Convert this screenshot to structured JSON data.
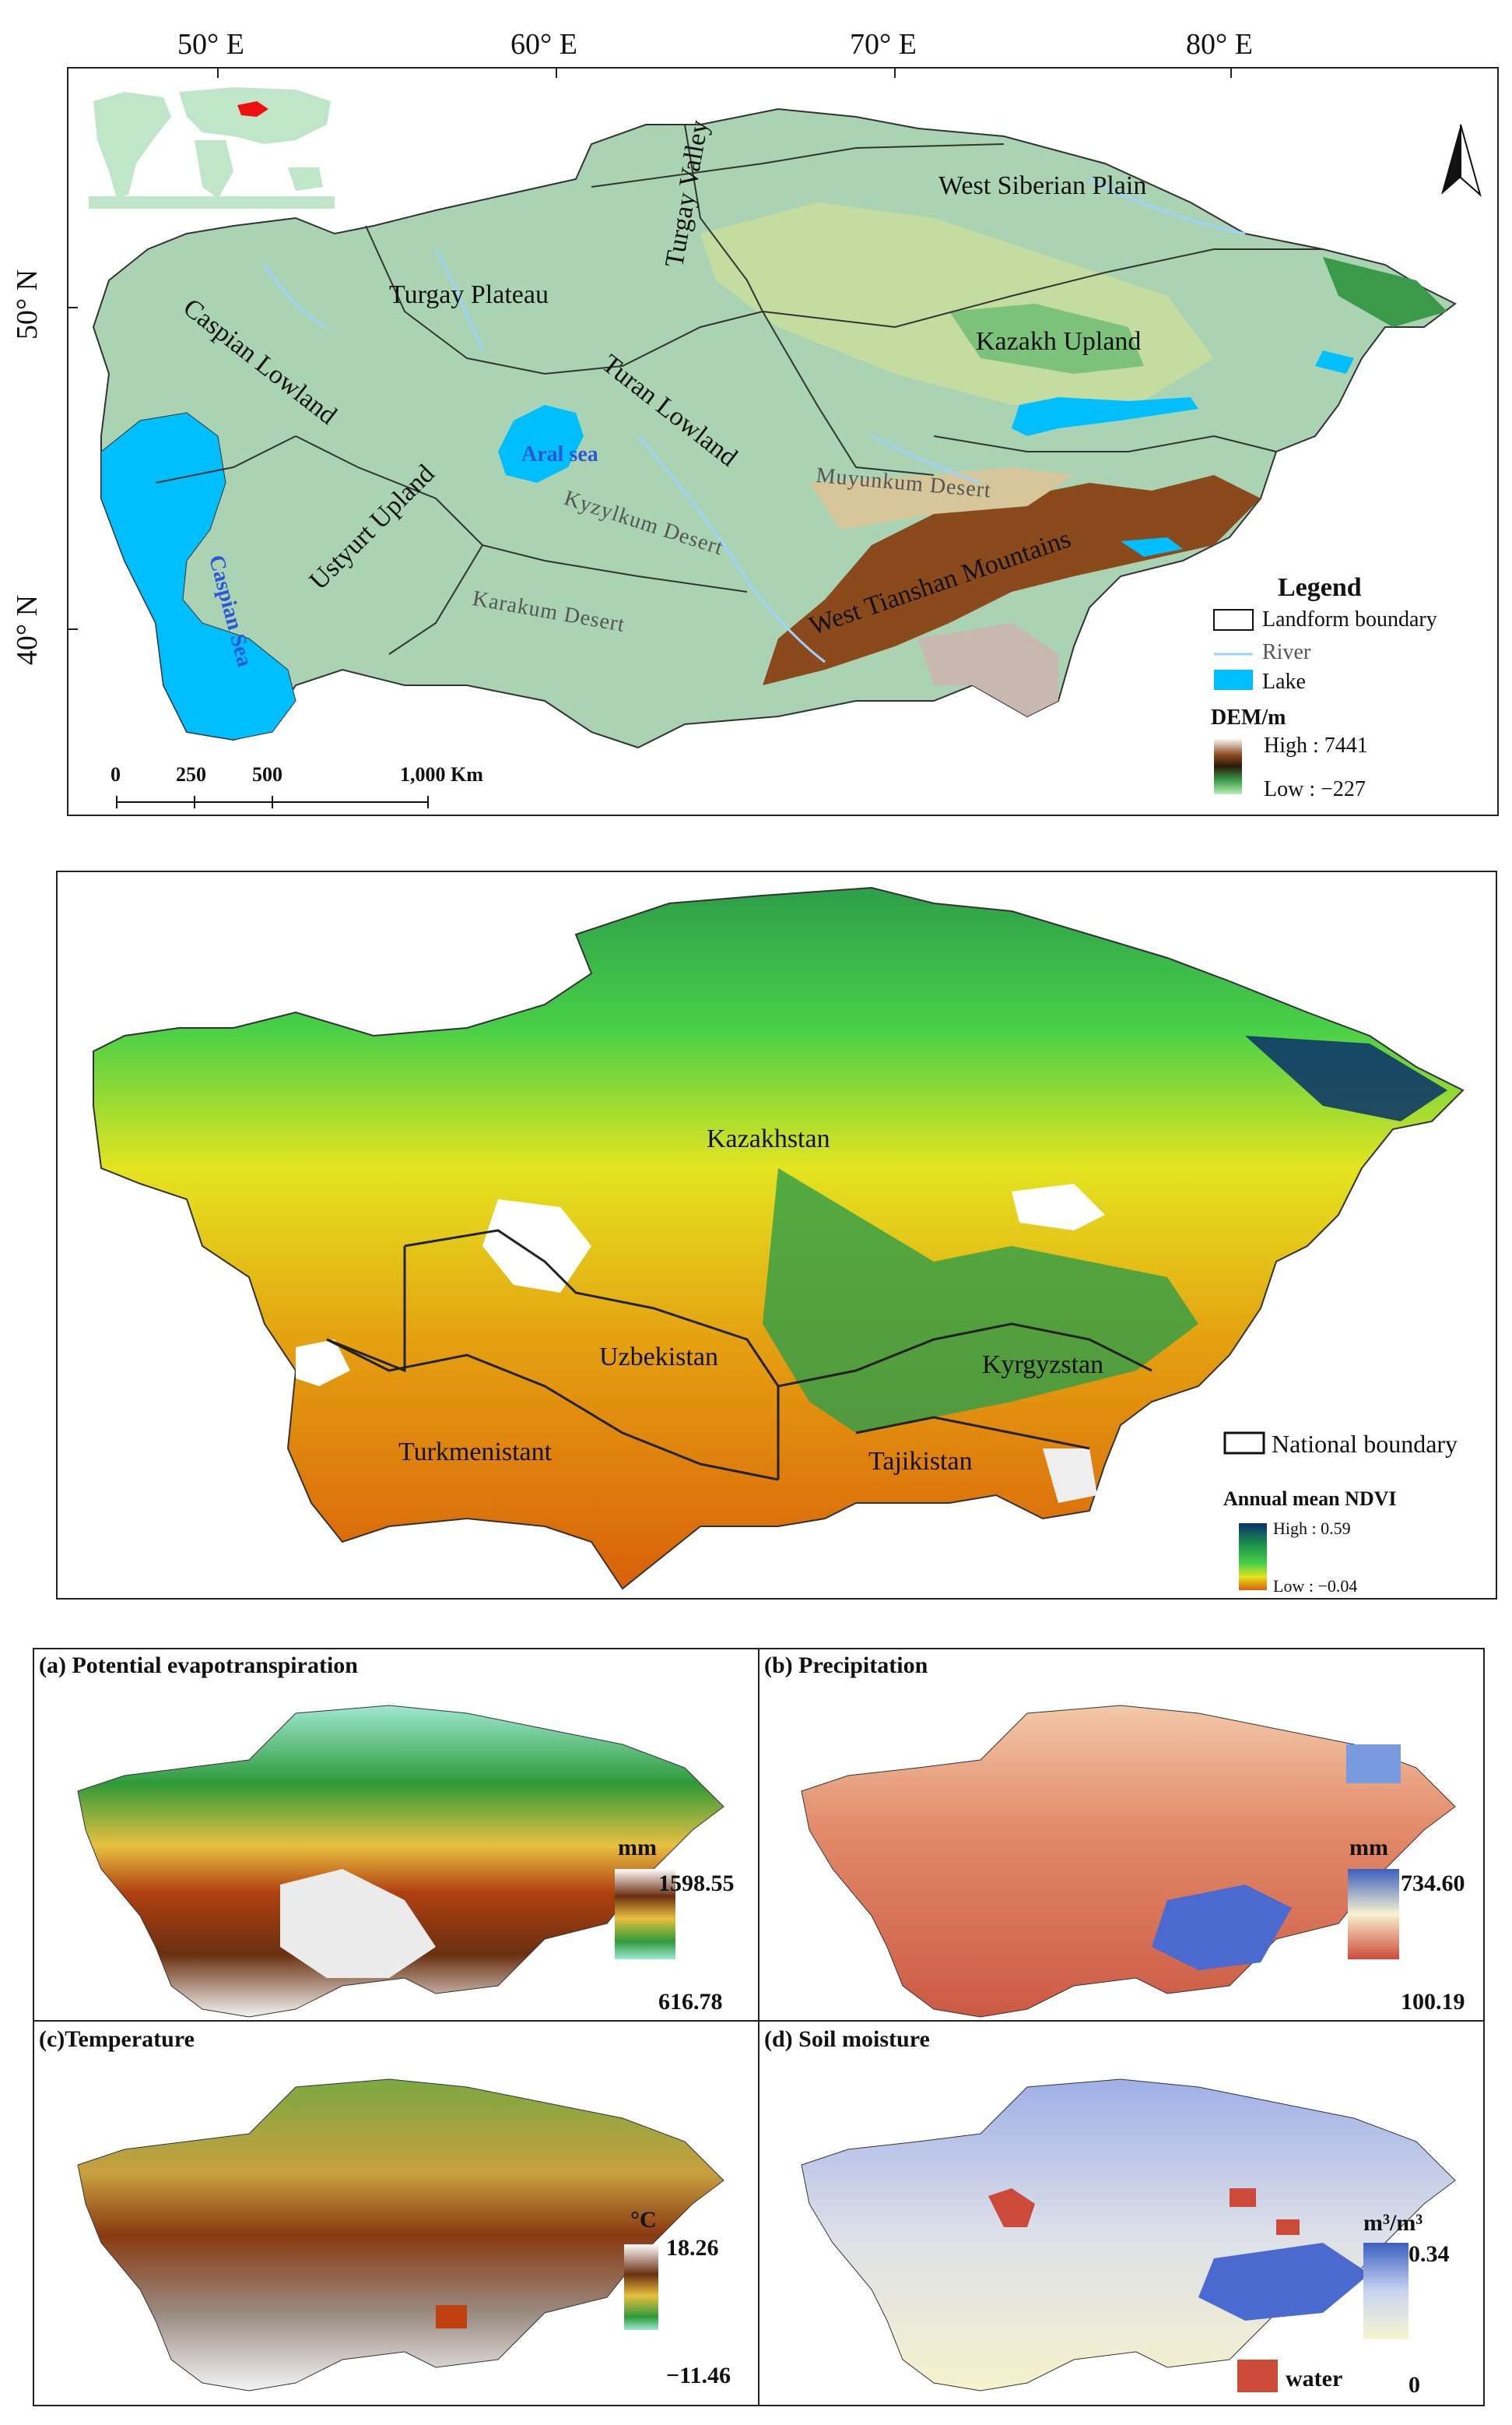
{
  "dem_map": {
    "longitude_ticks": [
      "50° E",
      "60° E",
      "70° E",
      "80° E"
    ],
    "latitude_ticks": [
      "50° N",
      "40° N"
    ],
    "north_label": "N",
    "regions": [
      "West Siberian Plain",
      "Turgay Valley",
      "Turgay Plateau",
      "Caspian Lowland",
      "Kazakh Upland",
      "Turan Lowland",
      "Aral sea",
      "Ustyurt Upland",
      "Muyunkum Desert",
      "Kyzylkum Desert",
      "Caspian Sea",
      "West Tianshan Mountains",
      "Karakum Desert"
    ],
    "scale_bar": [
      "0",
      "250",
      "500",
      "1,000 Km"
    ],
    "legend": {
      "title": "Legend",
      "items": [
        "Landform boundary",
        "River",
        "Lake"
      ],
      "dem_title": "DEM/m",
      "dem_high": "High : 7441",
      "dem_low": "Low : −227"
    },
    "colors": {
      "lake": "#00bfff",
      "river": "#9fd3ff",
      "lowland": "#a9d3b3",
      "upland": "#7cc27a",
      "mountain": "#8a4a1c"
    }
  },
  "ndvi_map": {
    "countries": [
      "Kazakhstan",
      "Uzbekistan",
      "Kyrgyzstan",
      "Turkmenistant",
      "Tajikistan"
    ],
    "legend": {
      "boundary": "National boundary",
      "title": "Annual mean NDVI",
      "high": "High : 0.59",
      "low": "Low : −0.04"
    },
    "colors": {
      "high": "#08306b",
      "mid": "#3cc23c",
      "low_mid": "#e8e800",
      "low": "#d9600a"
    }
  },
  "panels": {
    "a": {
      "title": "(a) Potential evapotranspiration",
      "unit": "mm",
      "max": "1598.55",
      "min": "616.78"
    },
    "b": {
      "title": "(b) Precipitation",
      "unit": "mm",
      "max": "734.60",
      "min": "100.19"
    },
    "c": {
      "title": "(c)Temperature",
      "unit": "°C",
      "max": "18.26",
      "min": "−11.46"
    },
    "d": {
      "title": "(d) Soil moisture",
      "unit": "m³/m³",
      "max": "0.34",
      "min": "0",
      "water_label": "water"
    }
  }
}
